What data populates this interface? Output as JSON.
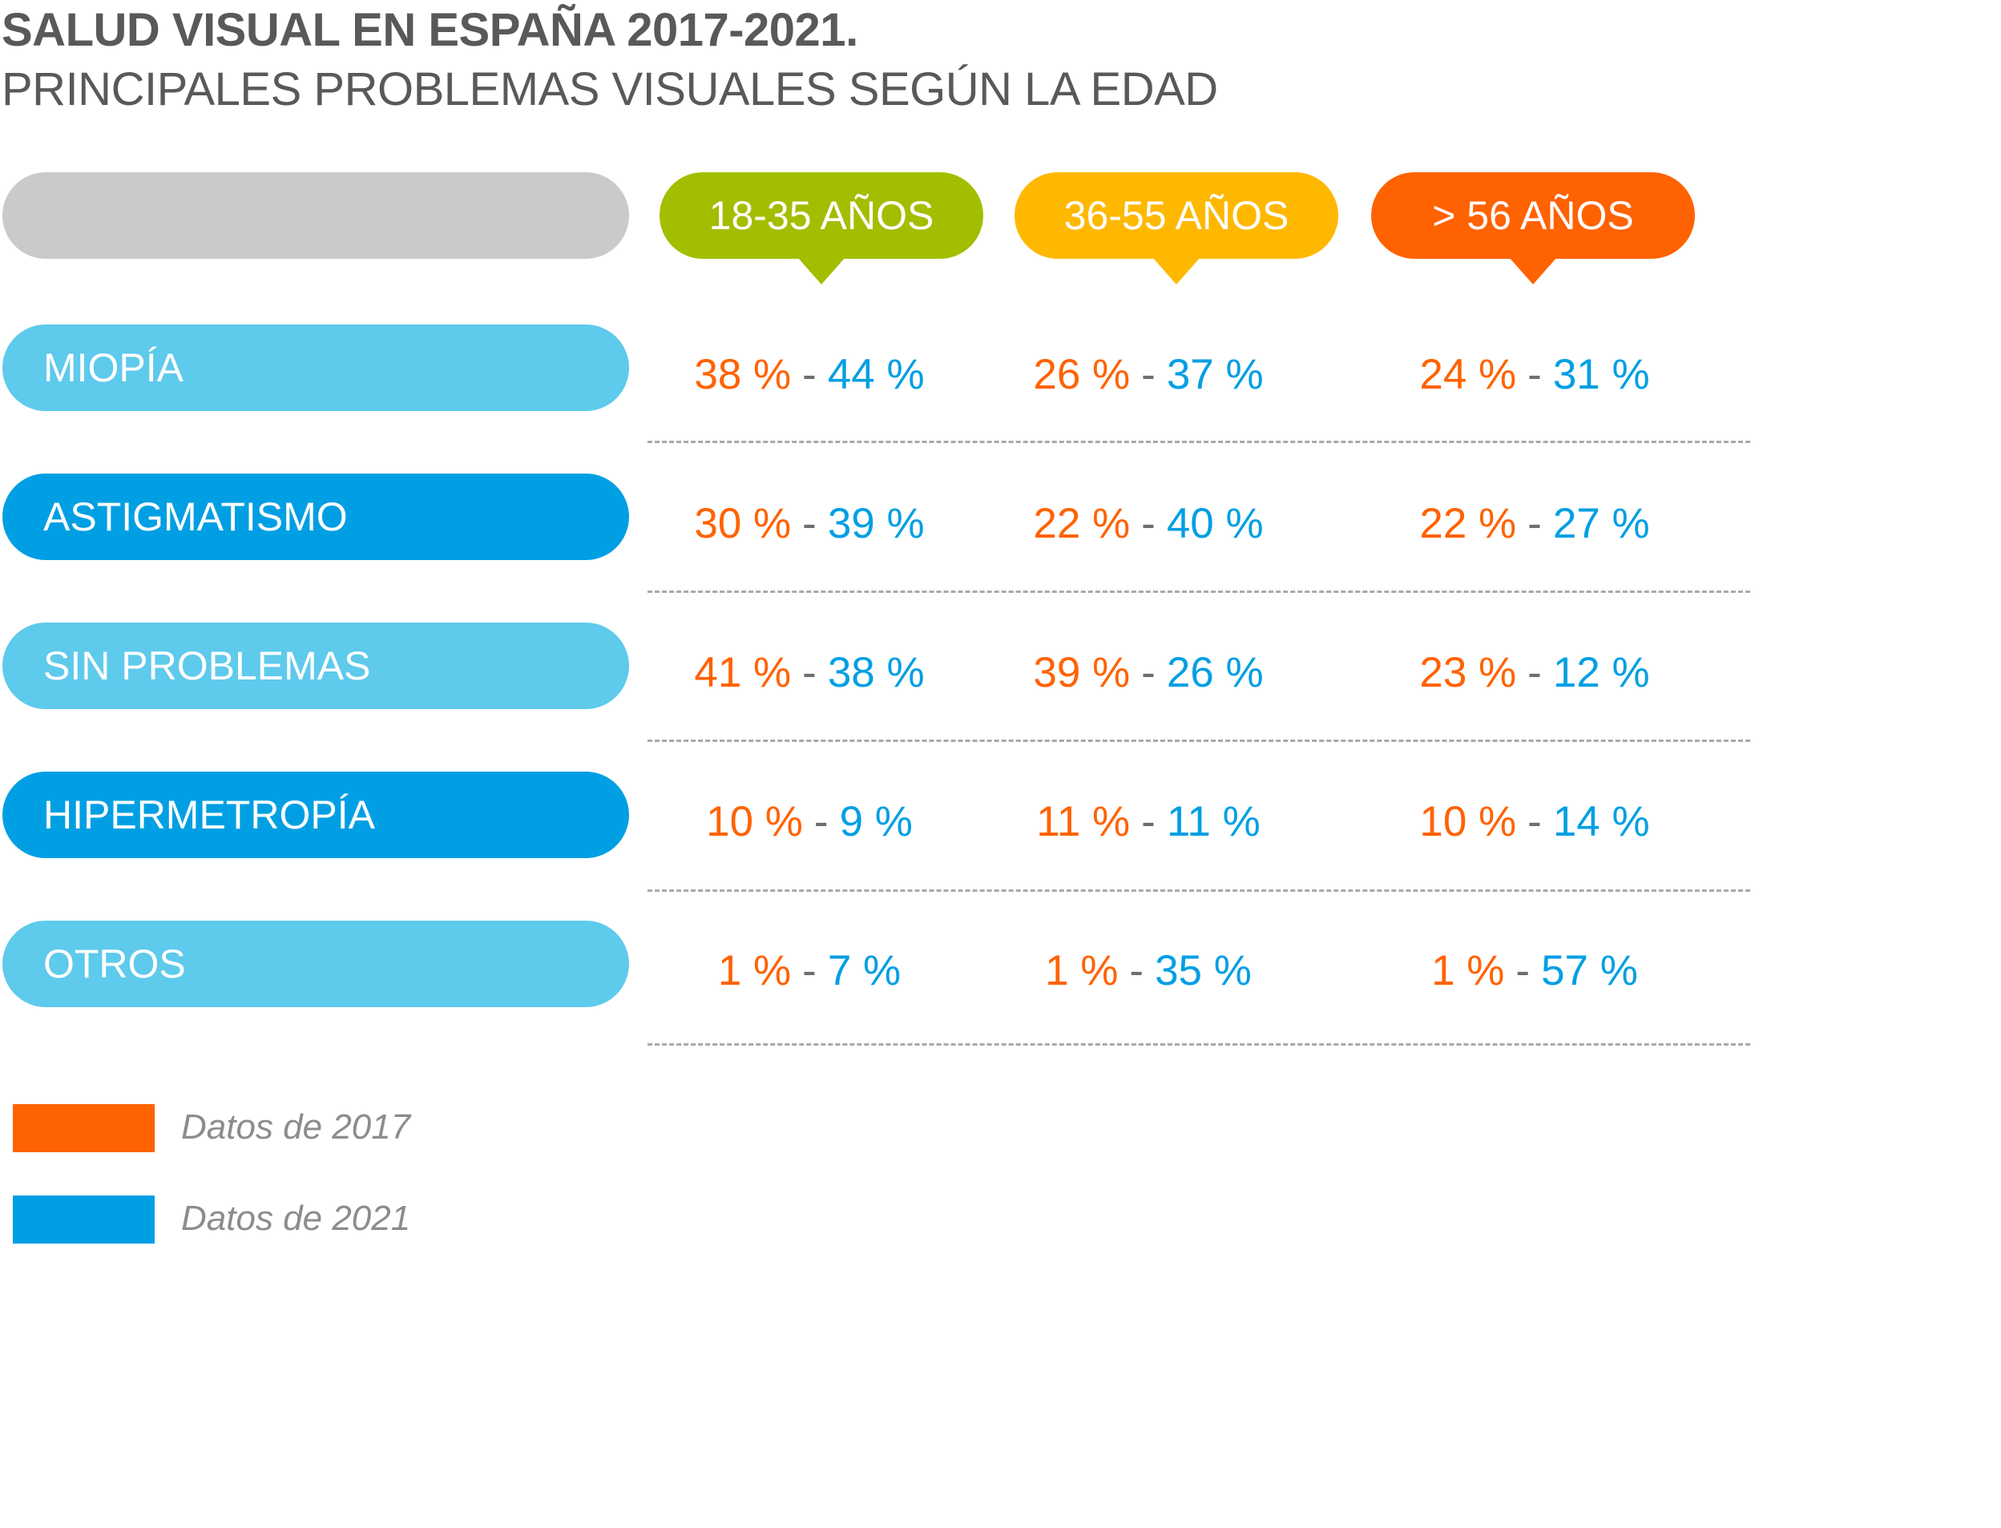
{
  "chart_data": {
    "type": "table",
    "title": "SALUD VISUAL EN ESPAÑA 2017-2021.",
    "subtitle": "PRINCIPALES PROBLEMAS VISUALES SEGÚN LA EDAD",
    "columns": [
      {
        "label": "18-35 AÑOS",
        "color": "#a3bd00"
      },
      {
        "label": "36-55 AÑOS",
        "color": "#ffb800"
      },
      {
        "label": "> 56 AÑOS",
        "color": "#ff6200"
      }
    ],
    "rows": [
      {
        "label": "MIOPÍA",
        "color": "#5ecaec",
        "cells": [
          {
            "v2017": "38 %",
            "v2021": "44 %"
          },
          {
            "v2017": "26 %",
            "v2021": "37 %"
          },
          {
            "v2017": "24 %",
            "v2021": "31 %"
          }
        ]
      },
      {
        "label": "ASTIGMATISMO",
        "color": "#009fe3",
        "cells": [
          {
            "v2017": "30 %",
            "v2021": "39 %"
          },
          {
            "v2017": "22 %",
            "v2021": "40 %"
          },
          {
            "v2017": "22 %",
            "v2021": "27 %"
          }
        ]
      },
      {
        "label": "SIN PROBLEMAS",
        "color": "#5ecaec",
        "cells": [
          {
            "v2017": "41 %",
            "v2021": "38 %"
          },
          {
            "v2017": "39 %",
            "v2021": "26 %"
          },
          {
            "v2017": "23 %",
            "v2021": "12 %"
          }
        ]
      },
      {
        "label": "HIPERMETROPÍA",
        "color": "#009fe3",
        "cells": [
          {
            "v2017": "10 %",
            "v2021": "9 %"
          },
          {
            "v2017": "11 %",
            "v2021": "11 %"
          },
          {
            "v2017": "10 %",
            "v2021": "14 %"
          }
        ]
      },
      {
        "label": "OTROS",
        "color": "#5ecaec",
        "cells": [
          {
            "v2017": "1 %",
            "v2021": "7 %"
          },
          {
            "v2017": "1 %",
            "v2021": "35 %"
          },
          {
            "v2017": "1 %",
            "v2021": "57 %"
          }
        ]
      }
    ],
    "separator": "-",
    "legend": [
      {
        "label": "Datos de 2017",
        "color": "#ff6200"
      },
      {
        "label": "Datos de 2021",
        "color": "#009fe3"
      }
    ],
    "legend_position": "bottom-left"
  }
}
